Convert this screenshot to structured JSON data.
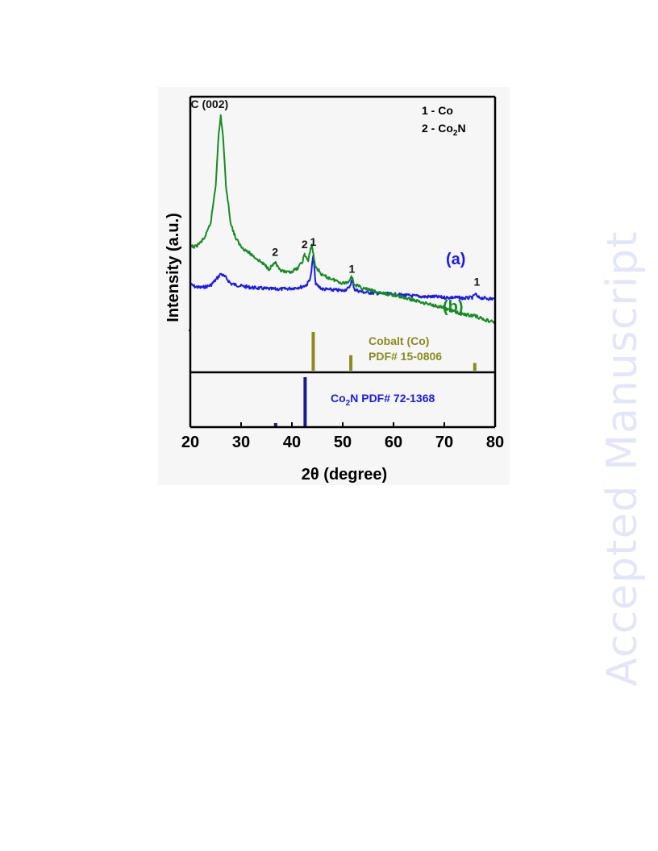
{
  "chart_data": {
    "type": "line",
    "xlabel": "2θ (degree)",
    "ylabel": "Intensity (a.u.)",
    "xlim": [
      20,
      80
    ],
    "x_ticks": [
      20,
      30,
      40,
      50,
      60,
      70,
      80
    ],
    "y_ticks_shown": false,
    "grid": false,
    "series": [
      {
        "name": "(a)",
        "color": "#1a1aee",
        "points": [
          [
            20,
            0.6
          ],
          [
            21,
            0.57
          ],
          [
            22,
            0.56
          ],
          [
            23,
            0.57
          ],
          [
            24,
            0.59
          ],
          [
            25,
            0.66
          ],
          [
            26,
            0.74
          ],
          [
            27,
            0.69
          ],
          [
            28,
            0.61
          ],
          [
            30,
            0.58
          ],
          [
            32,
            0.56
          ],
          [
            34,
            0.55
          ],
          [
            36,
            0.54
          ],
          [
            38,
            0.54
          ],
          [
            40,
            0.55
          ],
          [
            42,
            0.57
          ],
          [
            43,
            0.6
          ],
          [
            43.7,
            0.7
          ],
          [
            44.2,
            0.98
          ],
          [
            44.7,
            0.6
          ],
          [
            46,
            0.54
          ],
          [
            48,
            0.53
          ],
          [
            50,
            0.52
          ],
          [
            51.2,
            0.55
          ],
          [
            51.8,
            0.65
          ],
          [
            52.4,
            0.53
          ],
          [
            54,
            0.5
          ],
          [
            56,
            0.49
          ],
          [
            58,
            0.48
          ],
          [
            60,
            0.47
          ],
          [
            62,
            0.46
          ],
          [
            64,
            0.45
          ],
          [
            66,
            0.44
          ],
          [
            68,
            0.44
          ],
          [
            70,
            0.43
          ],
          [
            72,
            0.43
          ],
          [
            74,
            0.42
          ],
          [
            75.6,
            0.43
          ],
          [
            76.1,
            0.48
          ],
          [
            76.6,
            0.43
          ],
          [
            78,
            0.42
          ],
          [
            80,
            0.41
          ]
        ]
      },
      {
        "name": "(b)",
        "color": "#148c24",
        "points": [
          [
            20,
            0.58
          ],
          [
            21,
            0.58
          ],
          [
            22,
            0.61
          ],
          [
            23,
            0.66
          ],
          [
            24,
            0.76
          ],
          [
            25,
            1.05
          ],
          [
            25.5,
            1.4
          ],
          [
            26,
            1.58
          ],
          [
            26.5,
            1.4
          ],
          [
            27,
            1.05
          ],
          [
            28,
            0.75
          ],
          [
            29,
            0.64
          ],
          [
            30,
            0.58
          ],
          [
            32,
            0.52
          ],
          [
            34,
            0.46
          ],
          [
            35.5,
            0.41
          ],
          [
            36.7,
            0.46
          ],
          [
            37.5,
            0.4
          ],
          [
            39,
            0.38
          ],
          [
            40,
            0.39
          ],
          [
            41,
            0.41
          ],
          [
            42,
            0.46
          ],
          [
            42.5,
            0.52
          ],
          [
            43.2,
            0.47
          ],
          [
            43.9,
            0.6
          ],
          [
            44.6,
            0.43
          ],
          [
            46,
            0.36
          ],
          [
            48,
            0.33
          ],
          [
            50,
            0.3
          ],
          [
            51.2,
            0.31
          ],
          [
            51.7,
            0.36
          ],
          [
            52.3,
            0.29
          ],
          [
            54,
            0.26
          ],
          [
            56,
            0.24
          ],
          [
            58,
            0.22
          ],
          [
            60,
            0.21
          ],
          [
            62,
            0.19
          ],
          [
            64,
            0.17
          ],
          [
            66,
            0.15
          ],
          [
            68,
            0.13
          ],
          [
            70,
            0.11
          ],
          [
            72,
            0.08
          ],
          [
            74,
            0.06
          ],
          [
            76,
            0.05
          ],
          [
            78,
            0.02
          ],
          [
            80,
            0.0
          ]
        ]
      }
    ],
    "series_labels": [
      {
        "text": "(a)",
        "color": "#1a1aee"
      },
      {
        "text": "(b)",
        "color": "#148c24"
      }
    ],
    "reference_patterns": [
      {
        "label": "Cobalt (Co)\nPDF# 15-0806",
        "label_lines": [
          "Cobalt (Co)",
          "PDF# 15-0806"
        ],
        "color": "#8b8b1e",
        "lines": [
          {
            "x": 44.2,
            "intensity": 100
          },
          {
            "x": 51.6,
            "intensity": 40
          },
          {
            "x": 76.0,
            "intensity": 20
          }
        ]
      },
      {
        "label_prefix": "Co",
        "label_sub": "2",
        "label_suffix": "N PDF# 72-1368",
        "color": "#1a1a8c",
        "lines": [
          {
            "x": 42.6,
            "intensity": 100
          },
          {
            "x": 36.8,
            "intensity": 8
          }
        ]
      }
    ],
    "peak_annotations": [
      {
        "text": "C (002)",
        "x": 26.0,
        "series": 1
      },
      {
        "text": "1",
        "x": 44.2,
        "series": 0
      },
      {
        "text": "1",
        "x": 51.8,
        "series": 0
      },
      {
        "text": "1",
        "x": 76.1,
        "series": 0
      },
      {
        "text": "2",
        "x": 36.7,
        "series": 1
      },
      {
        "text": "2",
        "x": 42.5,
        "series": 1
      }
    ],
    "legend_lines": [
      {
        "prefix": "1 - Co",
        "sub": "",
        "suffix": ""
      },
      {
        "prefix": "2 - Co",
        "sub": "2",
        "suffix": "N"
      }
    ],
    "legend_placement": "top-right"
  },
  "watermark": "Accepted Manuscript"
}
